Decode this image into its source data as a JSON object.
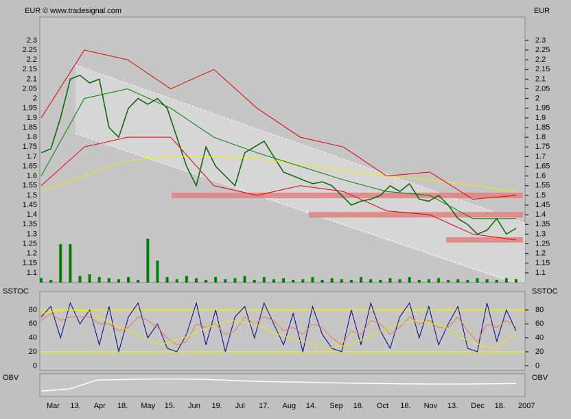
{
  "chart_data": {
    "type": "stock",
    "currency_label": "EUR",
    "source": "© www.tradesignal.com",
    "date_labels": [
      "Mar",
      "13.",
      "Apr",
      "18.",
      "May",
      "15.",
      "Jun",
      "19.",
      "Jul",
      "17.",
      "Aug",
      "14.",
      "Sep",
      "18.",
      "Oct",
      "16.",
      "Nov",
      "13.",
      "Dec",
      "18.",
      "2007"
    ],
    "price": {
      "ylim": [
        1.05,
        2.42
      ],
      "yticks": [
        1.1,
        1.15,
        1.2,
        1.25,
        1.3,
        1.35,
        1.4,
        1.45,
        1.5,
        1.55,
        1.6,
        1.65,
        1.7,
        1.75,
        1.8,
        1.85,
        1.9,
        1.95,
        2,
        2.05,
        2.1,
        2.15,
        2.2,
        2.25,
        2.3
      ],
      "series": [
        {
          "name": "close",
          "color": "#006400",
          "values": [
            1.72,
            1.74,
            1.9,
            2.1,
            2.12,
            2.08,
            2.1,
            1.85,
            1.8,
            1.95,
            2.0,
            1.97,
            2.0,
            1.95,
            1.8,
            1.65,
            1.55,
            1.75,
            1.65,
            1.6,
            1.55,
            1.72,
            1.75,
            1.78,
            1.7,
            1.62,
            1.6,
            1.58,
            1.56,
            1.57,
            1.55,
            1.5,
            1.45,
            1.47,
            1.48,
            1.5,
            1.55,
            1.52,
            1.56,
            1.48,
            1.47,
            1.5,
            1.45,
            1.38,
            1.35,
            1.3,
            1.32,
            1.38,
            1.3,
            1.33
          ]
        },
        {
          "name": "moving average",
          "color": "#f0f000",
          "values": [
            1.52,
            1.6,
            1.68,
            1.7,
            1.7,
            1.69,
            1.66,
            1.63,
            1.6,
            1.58,
            1.55,
            1.52
          ]
        },
        {
          "name": "upper band",
          "color": "#e00000",
          "values": [
            1.9,
            2.25,
            2.2,
            2.05,
            2.15,
            1.95,
            1.8,
            1.75,
            1.6,
            1.62,
            1.48,
            1.5
          ]
        },
        {
          "name": "lower band",
          "color": "#e00000",
          "values": [
            1.55,
            1.75,
            1.8,
            1.8,
            1.55,
            1.5,
            1.55,
            1.52,
            1.42,
            1.4,
            1.3,
            1.27
          ]
        },
        {
          "name": "short average",
          "color": "#008000",
          "values": [
            1.6,
            2.0,
            2.05,
            1.95,
            1.8,
            1.72,
            1.65,
            1.58,
            1.52,
            1.5,
            1.38,
            1.38
          ]
        }
      ],
      "support_levels": [
        1.5,
        1.4,
        1.27
      ],
      "support_color": "#e08080"
    },
    "volume": {
      "color": "#008000",
      "ylim": [
        0,
        100
      ],
      "values": [
        8,
        5,
        70,
        70,
        12,
        15,
        10,
        8,
        6,
        10,
        5,
        80,
        40,
        10,
        6,
        12,
        8,
        5,
        10,
        6,
        8,
        12,
        5,
        10,
        6,
        8,
        5,
        6,
        10,
        5,
        8,
        6,
        5,
        10,
        6,
        5,
        8,
        6,
        10,
        5,
        6,
        8,
        5,
        6,
        5,
        8,
        6,
        5,
        8,
        6
      ]
    },
    "sstoc": {
      "label": "SSTOC",
      "ylim": [
        -6.5,
        106.5
      ],
      "yticks": [
        0,
        20,
        40,
        60,
        80
      ],
      "levels": [
        20,
        80
      ],
      "series": [
        {
          "name": "%K",
          "color": "#000090",
          "values": [
            70,
            85,
            40,
            90,
            60,
            80,
            30,
            85,
            20,
            70,
            90,
            40,
            60,
            25,
            20,
            45,
            90,
            30,
            80,
            20,
            70,
            85,
            40,
            90,
            60,
            30,
            75,
            20,
            85,
            45,
            25,
            20,
            80,
            30,
            90,
            50,
            25,
            70,
            90,
            40,
            85,
            30,
            60,
            85,
            25,
            20,
            90,
            35,
            80,
            50
          ]
        },
        {
          "name": "%D",
          "color": "#e08040",
          "values": [
            65,
            75,
            65,
            70,
            70,
            70,
            60,
            60,
            50,
            55,
            70,
            65,
            55,
            40,
            30,
            35,
            60,
            55,
            60,
            45,
            50,
            70,
            60,
            70,
            65,
            50,
            55,
            45,
            60,
            55,
            40,
            30,
            50,
            45,
            65,
            60,
            45,
            55,
            70,
            60,
            65,
            55,
            55,
            70,
            50,
            35,
            60,
            55,
            65,
            55
          ]
        },
        {
          "name": "slow",
          "color": "#f0f000",
          "values": [
            75,
            80,
            78,
            60,
            45,
            30,
            40,
            55,
            65,
            60,
            45,
            35,
            25,
            30,
            45,
            60,
            65,
            55,
            35,
            25,
            45
          ]
        }
      ]
    },
    "obv": {
      "label": "OBV",
      "color": "#ffffff",
      "ylim": [
        0,
        100
      ],
      "values": [
        20,
        30,
        75,
        78,
        80,
        80,
        78,
        72,
        68,
        65,
        62,
        60,
        58,
        56,
        55,
        55,
        56,
        58
      ]
    }
  }
}
